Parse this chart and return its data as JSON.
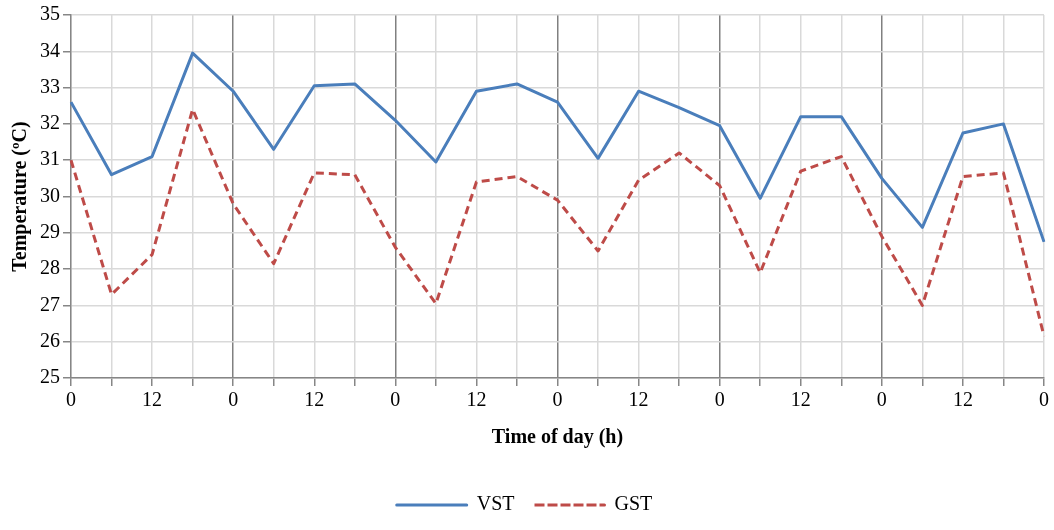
{
  "chart_data": {
    "type": "line",
    "xlabel": "Time of day (h)",
    "ylabel": "Temperature (ºC)",
    "categories": [
      "0",
      null,
      "12",
      null,
      "0",
      null,
      "12",
      null,
      "0",
      null,
      "12",
      null,
      "0",
      null,
      "12",
      null,
      "0",
      null,
      "12",
      null,
      "0",
      null,
      "12",
      null,
      "0"
    ],
    "series": [
      {
        "name": "VST",
        "color": "#4a7ebb",
        "line_style": "solid",
        "values": [
          32.6,
          30.6,
          31.1,
          33.95,
          32.9,
          31.3,
          33.05,
          33.1,
          32.1,
          30.95,
          32.9,
          33.1,
          32.6,
          31.05,
          32.9,
          32.45,
          31.95,
          29.95,
          32.2,
          32.2,
          30.5,
          29.15,
          31.75,
          32.0,
          28.75
        ]
      },
      {
        "name": "GST",
        "color": "#be4b48",
        "line_style": "dashed",
        "values": [
          31.0,
          27.3,
          28.4,
          32.4,
          29.8,
          28.15,
          30.65,
          30.6,
          28.6,
          27.05,
          30.4,
          30.55,
          29.9,
          28.5,
          30.45,
          31.2,
          30.3,
          27.9,
          30.7,
          31.1,
          28.9,
          27.0,
          30.55,
          30.65,
          26.15
        ]
      }
    ],
    "ylim": [
      25,
      35
    ],
    "yticks": [
      25,
      26,
      27,
      28,
      29,
      30,
      31,
      32,
      33,
      34,
      35
    ],
    "grid": true,
    "legend": "bottom",
    "marker": "none"
  }
}
